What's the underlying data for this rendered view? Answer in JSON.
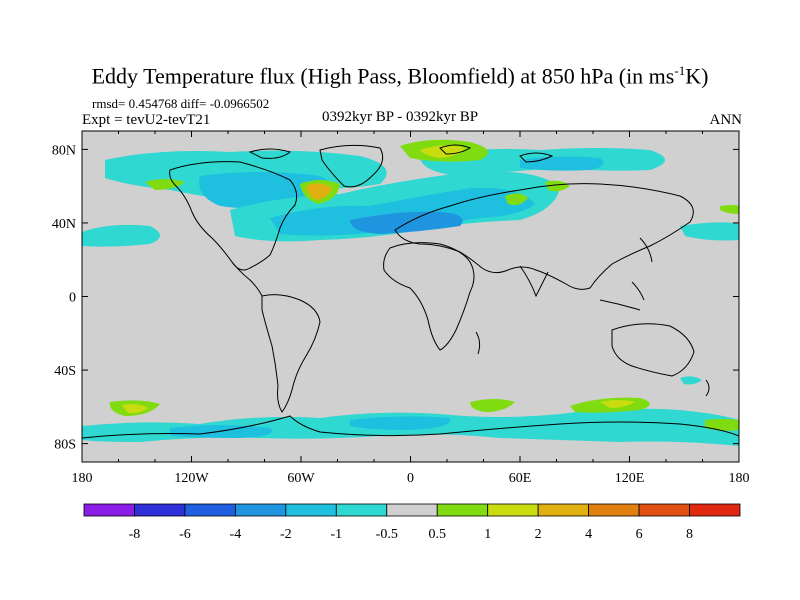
{
  "title_main": "Eddy Temperature flux (High Pass, Bloomfield) at 850 hPa (in ms",
  "title_sup": "-1",
  "title_tail": "K)",
  "stats": "rmsd= 0.454768 diff= -0.0966502",
  "experiment": "Expt = tevU2-tevT21",
  "period": "0392kyr BP - 0392kyr BP",
  "season": "ANN",
  "map": {
    "background_color": "#d0d0d0",
    "lon_ticks": [
      "180",
      "120W",
      "60W",
      "0",
      "60E",
      "120E",
      "180"
    ],
    "lat_ticks": [
      "80N",
      "40N",
      "0",
      "40S",
      "80S"
    ]
  },
  "colorbar": {
    "labels": [
      "-8",
      "-6",
      "-4",
      "-2",
      "-1",
      "-0.5",
      "0.5",
      "1",
      "2",
      "4",
      "6",
      "8"
    ],
    "colors": [
      "#8a1ee6",
      "#3030d8",
      "#1f5fe0",
      "#1f95e0",
      "#1fbfe0",
      "#2fd8d0",
      "#d0d0d0",
      "#80dc10",
      "#c8dc10",
      "#e0b010",
      "#e08010",
      "#e05010",
      "#e02810"
    ]
  }
}
